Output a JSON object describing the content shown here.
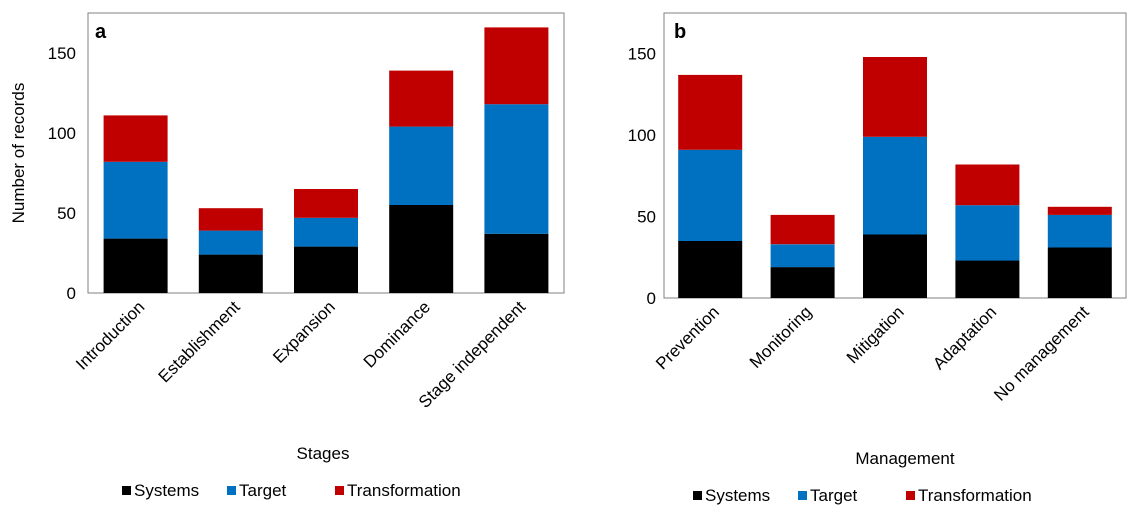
{
  "colors": {
    "systems": "#000000",
    "target": "#0070c0",
    "transformation": "#c00000"
  },
  "chart_data": [
    {
      "type": "bar",
      "stacked": true,
      "panel_label": "a",
      "title": "",
      "categories": [
        "Introduction",
        "Establishment",
        "Expansion",
        "Dominance",
        "Stage independent"
      ],
      "series": [
        {
          "name": "Systems",
          "color": "#000000",
          "values": [
            34,
            24,
            29,
            55,
            37
          ]
        },
        {
          "name": "Target",
          "color": "#0070c0",
          "values": [
            48,
            15,
            18,
            49,
            81
          ]
        },
        {
          "name": "Transformation",
          "color": "#c00000",
          "values": [
            29,
            14,
            18,
            35,
            48
          ]
        }
      ],
      "xlabel": "Stages",
      "ylabel": "Number  of records",
      "ylim": [
        0,
        175
      ],
      "yticks": [
        0,
        50,
        100,
        150
      ],
      "grid": false,
      "legend": "bottom"
    },
    {
      "type": "bar",
      "stacked": true,
      "panel_label": "b",
      "title": "",
      "categories": [
        "Prevention",
        "Monitoring",
        "Mitigation",
        "Adaptation",
        "No management"
      ],
      "series": [
        {
          "name": "Systems",
          "color": "#000000",
          "values": [
            35,
            19,
            39,
            23,
            31
          ]
        },
        {
          "name": "Target",
          "color": "#0070c0",
          "values": [
            56,
            14,
            60,
            34,
            20
          ]
        },
        {
          "name": "Transformation",
          "color": "#c00000",
          "values": [
            46,
            18,
            49,
            25,
            5
          ]
        }
      ],
      "xlabel": "Management",
      "ylabel": "",
      "ylim": [
        0,
        175
      ],
      "yticks": [
        0,
        50,
        100,
        150
      ],
      "grid": false,
      "legend": "bottom"
    }
  ]
}
